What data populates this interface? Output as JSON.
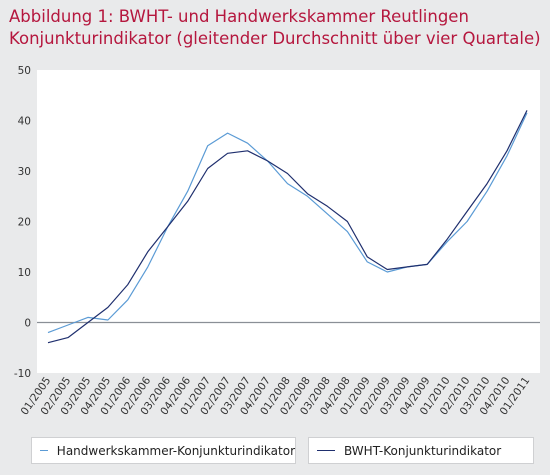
{
  "title": {
    "line1": "Abbildung 1: BWHT- und Handwerkskammer  Reutlingen",
    "line2": "Konjunkturindikator (gleitender Durchschnitt über vier Quartale)"
  },
  "colors": {
    "title": "#b5173e",
    "hwk": "#5b9bd5",
    "bwht": "#1f2f6e",
    "zero_line": "#8a8f96",
    "plot_bg": "#ffffff"
  },
  "chart_data": {
    "type": "line",
    "title": "Abbildung 1: BWHT- und Handwerkskammer  Reutlingen Konjunkturindikator (gleitender Durchschnitt über vier Quartale)",
    "categories": [
      "01/2005",
      "02/2005",
      "03/2005",
      "04/2005",
      "01/2006",
      "02/2006",
      "03/2006",
      "04/2006",
      "01/2007",
      "02/2007",
      "03/2007",
      "04/2007",
      "01/2008",
      "02/2008",
      "03/2008",
      "04/2008",
      "01/2009",
      "02/2009",
      "03/2009",
      "04/2009",
      "01/2010",
      "02/2010",
      "03/2010",
      "04/2010",
      "01/2011"
    ],
    "ylim": [
      -10,
      50
    ],
    "yticks": [
      -10,
      0,
      10,
      20,
      30,
      40,
      50
    ],
    "grid": false,
    "legend_position": "bottom",
    "series": [
      {
        "name": "Handwerkskammer-Konjunkturindikator",
        "values": [
          -2,
          -0.5,
          1,
          0.5,
          4.5,
          11,
          19,
          26,
          35,
          37.5,
          35.5,
          32,
          27.5,
          25,
          21.5,
          18,
          12,
          10,
          11,
          11.5,
          16,
          20,
          26,
          33,
          41.5
        ]
      },
      {
        "name": "BWHT-Konjunkturindikator",
        "values": [
          -4,
          -3,
          0,
          3,
          7.5,
          14,
          19,
          24,
          30.5,
          33.5,
          34,
          32,
          29.5,
          25.5,
          23,
          20,
          13,
          10.5,
          11,
          11.5,
          16.5,
          22,
          27.5,
          34,
          42
        ]
      }
    ]
  }
}
